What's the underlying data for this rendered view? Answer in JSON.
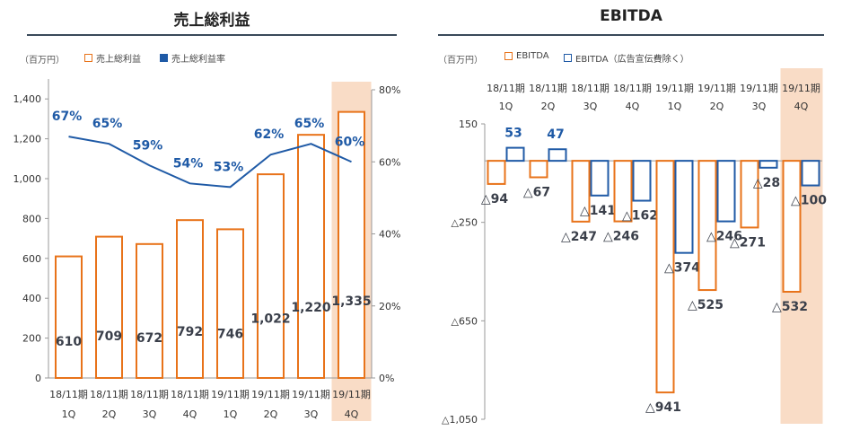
{
  "colors": {
    "orange": "#e8731a",
    "blue": "#1f5aa6",
    "highlight": "#f9dcc6",
    "axis": "#666666"
  },
  "left": {
    "title": "売上総利益",
    "unit": "（百万円）",
    "legend_bar": "売上総利益",
    "legend_line": "売上総利益率"
  },
  "right": {
    "title": "EBITDA",
    "unit": "（百万円）",
    "legend_a": "EBITDA",
    "legend_b": "EBITDA（広告宣伝費除く）"
  },
  "chart_data": [
    {
      "type": "bar",
      "title": "売上総利益",
      "categories": [
        [
          "18/11期",
          "1Q"
        ],
        [
          "18/11期",
          "2Q"
        ],
        [
          "18/11期",
          "3Q"
        ],
        [
          "18/11期",
          "4Q"
        ],
        [
          "19/11期",
          "1Q"
        ],
        [
          "19/11期",
          "2Q"
        ],
        [
          "19/11期",
          "3Q"
        ],
        [
          "19/11期",
          "4Q"
        ]
      ],
      "series": [
        {
          "name": "売上総利益",
          "values": [
            610,
            709,
            672,
            792,
            746,
            1022,
            1220,
            1335
          ],
          "labels": [
            "610",
            "709",
            "672",
            "792",
            "746",
            "1,022",
            "1,220",
            "1,335"
          ]
        },
        {
          "name": "売上総利益率",
          "type": "line",
          "axis": "right",
          "values": [
            67,
            65,
            59,
            54,
            53,
            62,
            65,
            60
          ],
          "labels": [
            "67%",
            "65%",
            "59%",
            "54%",
            "53%",
            "62%",
            "65%",
            "60%"
          ]
        }
      ],
      "ylim": [
        0,
        1500
      ],
      "yticks": [
        "0",
        "200",
        "400",
        "600",
        "800",
        "1,000",
        "1,200",
        "1,400"
      ],
      "ytick_values": [
        0,
        200,
        400,
        600,
        800,
        1000,
        1200,
        1400
      ],
      "y2lim": [
        0,
        80
      ],
      "y2ticks": [
        "0%",
        "20%",
        "40%",
        "60%",
        "80%"
      ],
      "y2tick_values": [
        0,
        20,
        40,
        60,
        80
      ],
      "highlight_index": 7
    },
    {
      "type": "bar",
      "title": "EBITDA",
      "categories": [
        [
          "18/11期",
          "1Q"
        ],
        [
          "18/11期",
          "2Q"
        ],
        [
          "18/11期",
          "3Q"
        ],
        [
          "18/11期",
          "4Q"
        ],
        [
          "19/11期",
          "1Q"
        ],
        [
          "19/11期",
          "2Q"
        ],
        [
          "19/11期",
          "3Q"
        ],
        [
          "19/11期",
          "4Q"
        ]
      ],
      "series": [
        {
          "name": "EBITDA",
          "values": [
            -94,
            -67,
            -247,
            -246,
            -941,
            -525,
            -271,
            -532
          ],
          "labels": [
            "△94",
            "△67",
            "△247",
            "△246",
            "△941",
            "△525",
            "△271",
            "△532"
          ]
        },
        {
          "name": "EBITDA（広告宣伝費除く）",
          "values": [
            53,
            47,
            -141,
            -162,
            -374,
            -246,
            -28,
            -100
          ],
          "labels": [
            "53",
            "47",
            "△141",
            "△162",
            "△374",
            "△246",
            "△28",
            "△100"
          ]
        }
      ],
      "ylim": [
        -1050,
        150
      ],
      "yticks": [
        "150",
        "△250",
        "△650",
        "△1,050"
      ],
      "ytick_values": [
        150,
        -250,
        -650,
        -1050
      ],
      "highlight_index": 7
    }
  ]
}
